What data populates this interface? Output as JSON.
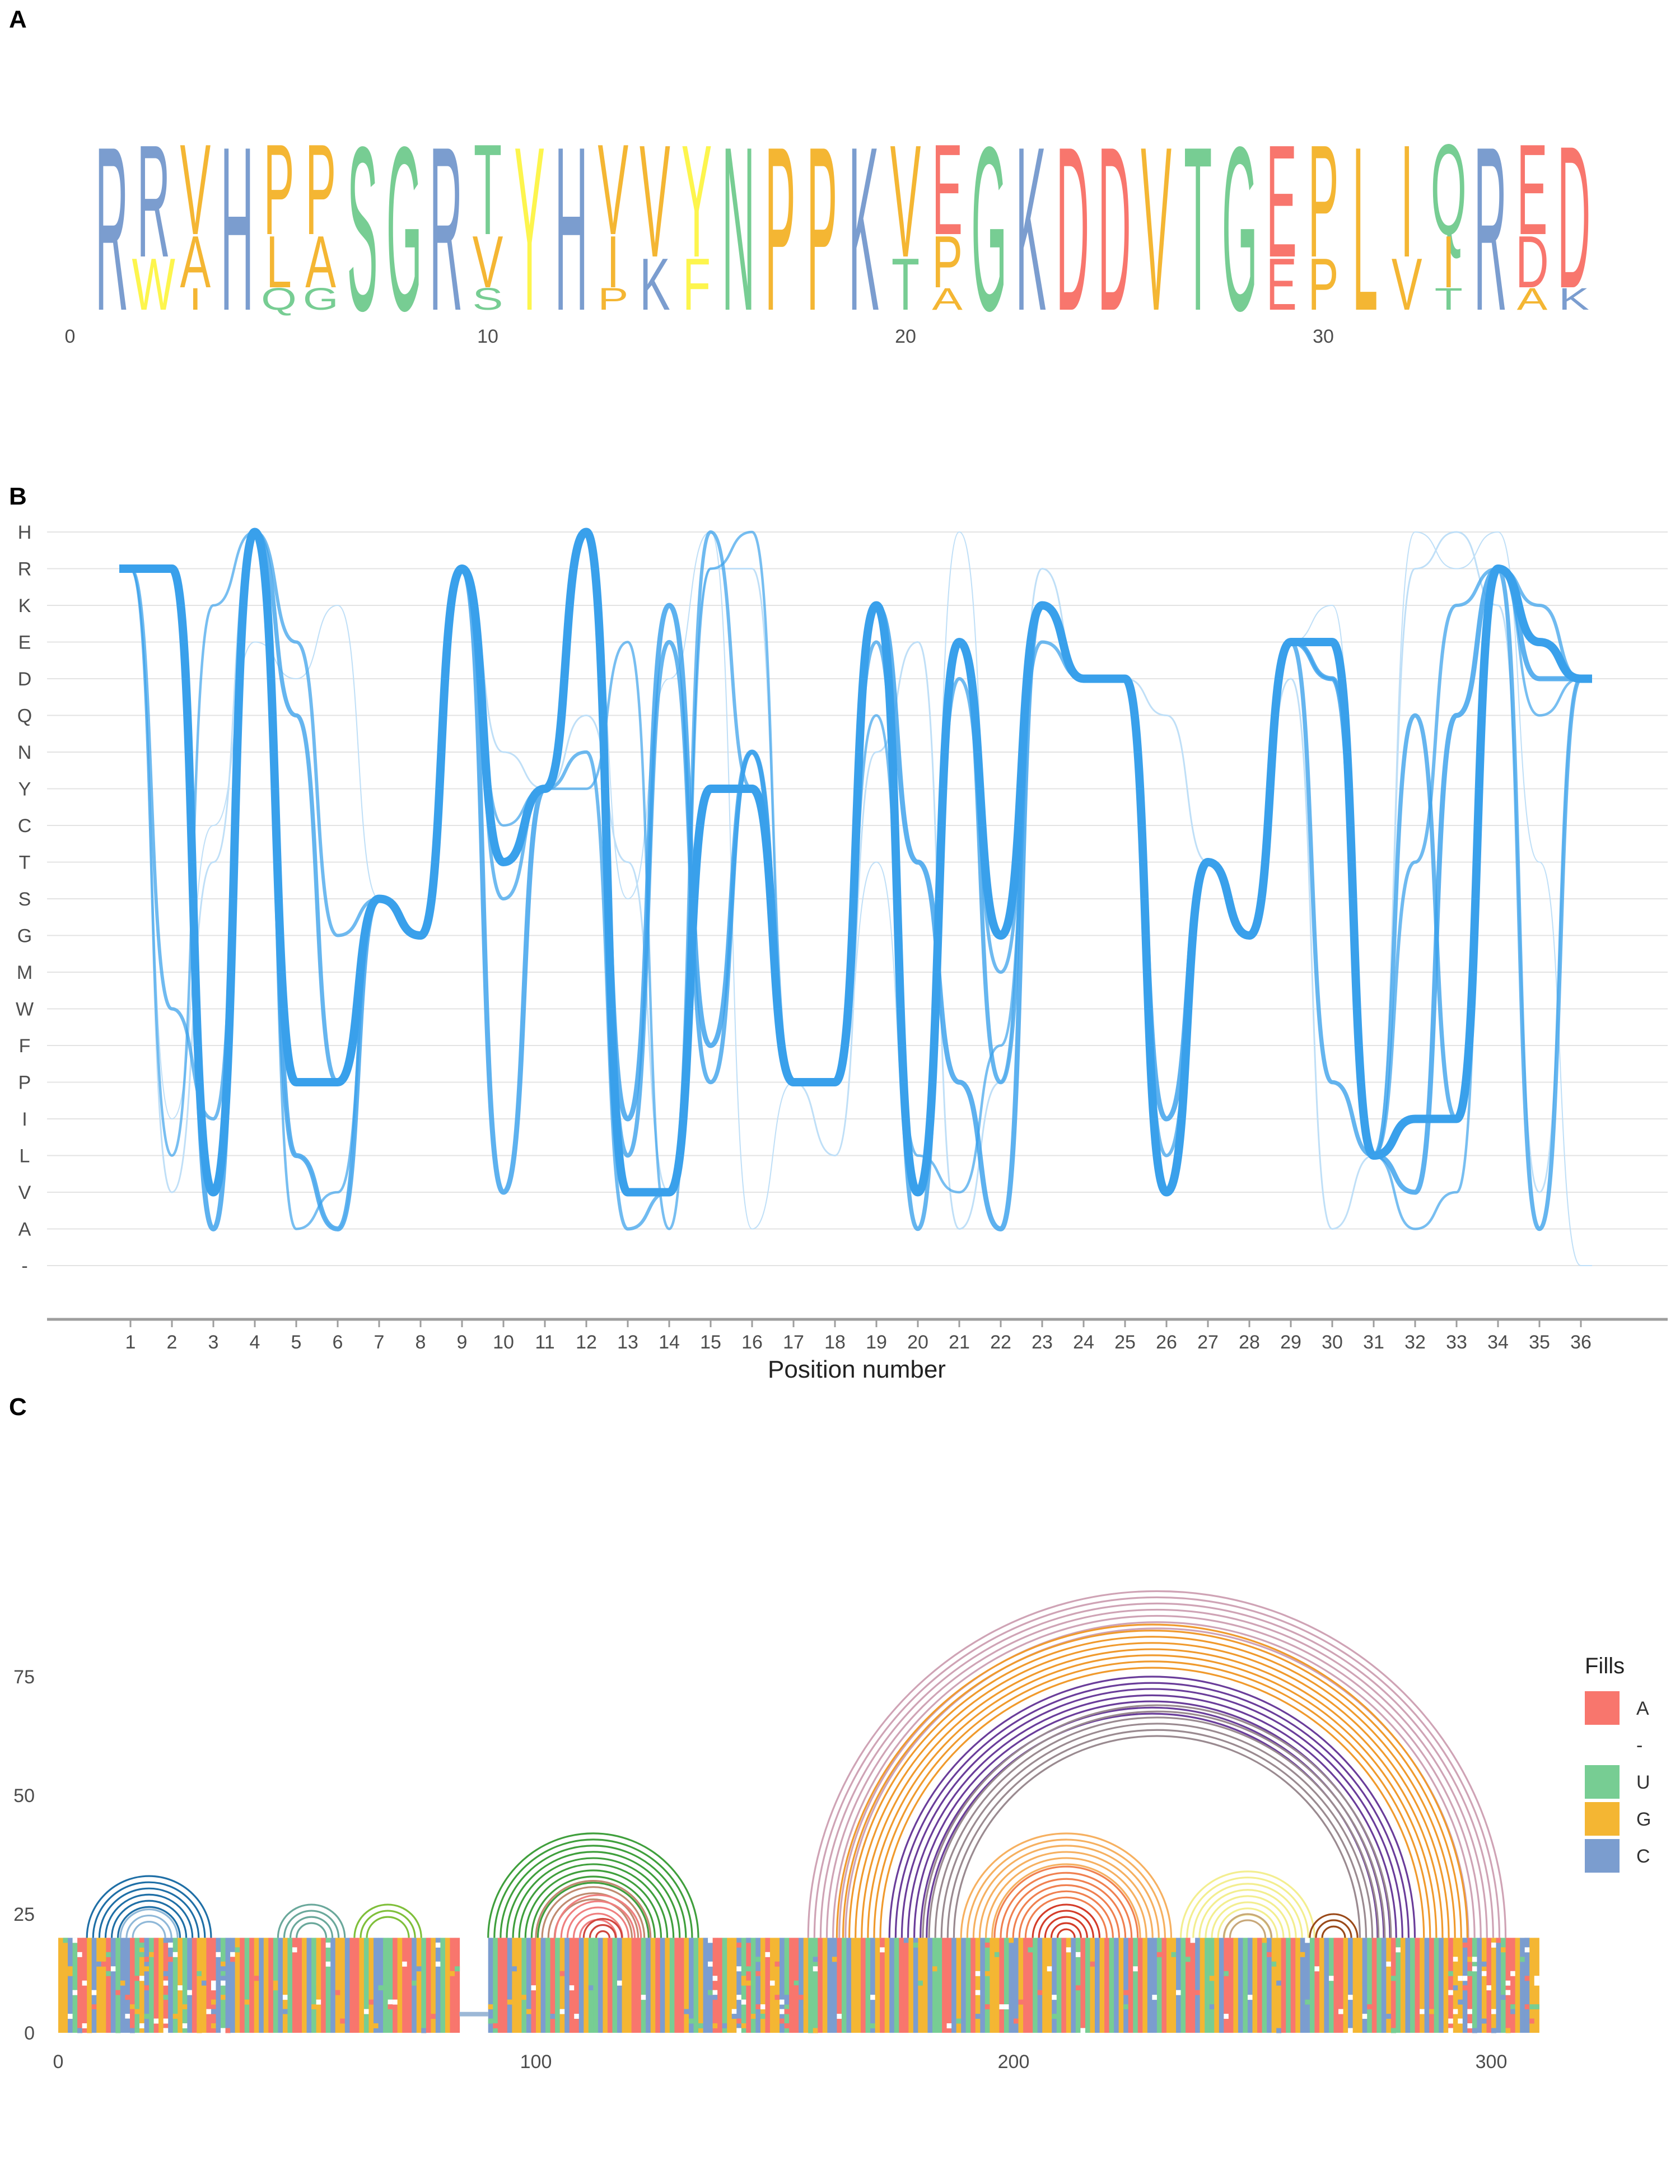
{
  "panels": {
    "a": "A",
    "b": "B",
    "c": "C"
  },
  "colors": {
    "acidic": "#f8766d",
    "basic": "#7b9dcf",
    "polar": "#77cd93",
    "hydrophobic": "#f4b633",
    "aromatic": "#fdf54d",
    "other": "#b9b9b9",
    "path": "#39a0eb",
    "path_light": "#bfdff7",
    "grid": "#e3e3e3",
    "A": "#f8766d",
    "U": "#77cd93",
    "G": "#f4b633",
    "C": "#7b9dcf"
  },
  "chart_data": [
    {
      "type": "sequence-logo",
      "x_ticks": [
        "0",
        "10",
        "20",
        "30"
      ],
      "x_tick_values": [
        0,
        10,
        20,
        30
      ],
      "xlim": [
        0,
        36.6
      ],
      "consensus": "RRVHPPSGRTYHVVYNPPKVEGKDDVTGEPLIQRED",
      "secondary": {
        "2": "W",
        "3": "A",
        "5": "L",
        "6": "A",
        "10": "V",
        "13": "I",
        "14": "K",
        "15": "F",
        "20": "T",
        "21": "P",
        "29": "E",
        "30": "P",
        "32": "V",
        "33": "I",
        "35": "D"
      },
      "tertiary": {
        "3": "I",
        "5": "Q",
        "6": "G",
        "10": "S",
        "13": "P",
        "21": "A",
        "33": "T",
        "35": "A",
        "36": "K"
      },
      "residue_classes": {
        "acidic": [
          "D",
          "E"
        ],
        "basic": [
          "K",
          "R",
          "H"
        ],
        "polar": [
          "S",
          "T",
          "N",
          "Q",
          "G"
        ],
        "hydrophobic": [
          "A",
          "V",
          "L",
          "I",
          "P",
          "M"
        ],
        "aromatic": [
          "Y",
          "F",
          "W"
        ]
      }
    },
    {
      "type": "line",
      "xlabel": "Position number",
      "x_categories": [
        "1",
        "2",
        "3",
        "4",
        "5",
        "6",
        "7",
        "8",
        "9",
        "10",
        "11",
        "12",
        "13",
        "14",
        "15",
        "16",
        "17",
        "18",
        "19",
        "20",
        "21",
        "22",
        "23",
        "24",
        "25",
        "26",
        "27",
        "28",
        "29",
        "30",
        "31",
        "32",
        "33",
        "34",
        "35",
        "36"
      ],
      "y_categories": [
        "H",
        "R",
        "K",
        "E",
        "D",
        "Q",
        "N",
        "Y",
        "C",
        "T",
        "S",
        "G",
        "M",
        "W",
        "F",
        "P",
        "I",
        "L",
        "V",
        "A",
        "-"
      ],
      "series": [
        {
          "weight": 10,
          "values": [
            "R",
            "R",
            "V",
            "H",
            "P",
            "P",
            "S",
            "G",
            "R",
            "T",
            "Y",
            "H",
            "V",
            "V",
            "Y",
            "Y",
            "P",
            "P",
            "K",
            "V",
            "E",
            "G",
            "K",
            "D",
            "D",
            "V",
            "T",
            "G",
            "E",
            "E",
            "L",
            "I",
            "I",
            "R",
            "E",
            "D"
          ]
        },
        {
          "weight": 6,
          "values": [
            "R",
            "R",
            "A",
            "H",
            "L",
            "A",
            "S",
            "G",
            "R",
            "V",
            "Y",
            "H",
            "I",
            "K",
            "F",
            "N",
            "P",
            "P",
            "K",
            "T",
            "P",
            "A",
            "K",
            "D",
            "D",
            "I",
            "T",
            "G",
            "E",
            "D",
            "L",
            "V",
            "Q",
            "R",
            "D",
            "D"
          ]
        },
        {
          "weight": 5,
          "values": [
            "R",
            "R",
            "V",
            "H",
            "Q",
            "P",
            "S",
            "G",
            "R",
            "T",
            "Y",
            "H",
            "L",
            "E",
            "P",
            "N",
            "P",
            "P",
            "K",
            "A",
            "E",
            "P",
            "K",
            "D",
            "D",
            "V",
            "T",
            "G",
            "E",
            "P",
            "L",
            "Q",
            "I",
            "R",
            "A",
            "D"
          ]
        },
        {
          "weight": 4,
          "values": [
            "R",
            "W",
            "I",
            "H",
            "E",
            "G",
            "S",
            "G",
            "R",
            "S",
            "Y",
            "N",
            "A",
            "V",
            "H",
            "Y",
            "P",
            "P",
            "E",
            "V",
            "D",
            "M",
            "E",
            "D",
            "D",
            "L",
            "T",
            "G",
            "E",
            "E",
            "L",
            "T",
            "K",
            "R",
            "K",
            "D"
          ]
        },
        {
          "weight": 3,
          "values": [
            "R",
            "L",
            "K",
            "H",
            "A",
            "V",
            "S",
            "G",
            "R",
            "C",
            "Y",
            "Y",
            "E",
            "A",
            "R",
            "H",
            "P",
            "P",
            "Q",
            "L",
            "V",
            "F",
            "K",
            "D",
            "D",
            "V",
            "T",
            "G",
            "E",
            "D",
            "L",
            "A",
            "V",
            "R",
            "Q",
            "D"
          ]
        },
        {
          "weight": 2,
          "values": [
            "R",
            "V",
            "T",
            "H",
            "L",
            "A",
            "S",
            "G",
            "R",
            "N",
            "Y",
            "Q",
            "T",
            "V",
            "R",
            "R",
            "P",
            "L",
            "N",
            "E",
            "A",
            "P",
            "R",
            "D",
            "D",
            "Q",
            "T",
            "G",
            "D",
            "A",
            "L",
            "R",
            "H",
            "K",
            "V",
            "D"
          ]
        },
        {
          "weight": 1,
          "values": [
            "R",
            "I",
            "C",
            "E",
            "D",
            "K",
            "S",
            "G",
            "R",
            "T",
            "Y",
            "H",
            "S",
            "D",
            "H",
            "A",
            "P",
            "P",
            "T",
            "V",
            "H",
            "G",
            "K",
            "D",
            "D",
            "V",
            "T",
            "G",
            "E",
            "K",
            "L",
            "H",
            "R",
            "H",
            "T",
            "-"
          ]
        }
      ]
    },
    {
      "type": "heatmap",
      "x_ticks": [
        "0",
        "100",
        "200",
        "300"
      ],
      "x_tick_values": [
        0,
        100,
        200,
        300
      ],
      "y_ticks": [
        "0",
        "25",
        "50",
        "75"
      ],
      "y_tick_values": [
        0,
        25,
        50,
        75
      ],
      "xlim": [
        0,
        310
      ],
      "ylim": [
        0,
        95
      ],
      "rows": 20,
      "gap": [
        84,
        90
      ],
      "seed_sequence": "GGCUAAGCGGACUCCAUGCUAGACUGUCAGGAACUCCGAUAGCGAUCGUAAGCUGAUCGGCAAGUGCCUUAGAACGUAGCUGAAUCCGAGCUAACGGUCAGCUAUGCAACGUUCGAUCGGAAUCGACGUAAGCUGCCAAUGGCUAUCGAGGCUAACGUUAGCCAUCGGAUCGAGCUAAGCGGCUUAACGCUAGCUGGAUCCGAAUCGGCUAGCUAUGCGAUCGCAUAGCCUAGGCUAACGUUGCAAGCUCGAUCGGAUAGCCUAGCUAAGCGGCUAUCGAUGCUAGCAUCGAGGCAUCGAGCUAAGCCG",
      "legend_title": "Fills",
      "legend": [
        {
          "label": "A",
          "color": "#f8766d"
        },
        {
          "label": "-",
          "color": "#ffffff"
        },
        {
          "label": "U",
          "color": "#77cd93"
        },
        {
          "label": "G",
          "color": "#f4b633"
        },
        {
          "label": "C",
          "color": "#7b9dcf"
        }
      ],
      "arcs": [
        {
          "center": 19,
          "radius": 13,
          "count": 6,
          "step": 1.3,
          "color": "#1f6fa6"
        },
        {
          "center": 19,
          "radius": 6,
          "count": 3,
          "step": 1.3,
          "color": "#8fb8d8"
        },
        {
          "center": 53,
          "radius": 7,
          "count": 4,
          "step": 1.3,
          "color": "#6aa89b"
        },
        {
          "center": 69,
          "radius": 7,
          "count": 3,
          "step": 1.3,
          "color": "#7fbf3a"
        },
        {
          "center": 112,
          "radius": 22,
          "count": 9,
          "step": 1.3,
          "color": "#3f9f3c"
        },
        {
          "center": 112,
          "radius": 12,
          "count": 4,
          "step": 1.3,
          "color": "#c08a70"
        },
        {
          "center": 113,
          "radius": 9,
          "count": 5,
          "step": 1.3,
          "color": "#ef7f7f"
        },
        {
          "center": 114,
          "radius": 4,
          "count": 3,
          "step": 1.3,
          "color": "#d0453d"
        },
        {
          "center": 230,
          "radius": 73,
          "count": 7,
          "step": 1.3,
          "color": "#cfa3b5"
        },
        {
          "center": 229,
          "radius": 66,
          "count": 8,
          "step": 1.3,
          "color": "#f09a2d"
        },
        {
          "center": 229,
          "radius": 55,
          "count": 7,
          "step": 1.3,
          "color": "#6a3d9a"
        },
        {
          "center": 230,
          "radius": 49,
          "count": 6,
          "step": 1.3,
          "color": "#9a8a90"
        },
        {
          "center": 211,
          "radius": 22,
          "count": 6,
          "step": 1.3,
          "color": "#f6b060"
        },
        {
          "center": 211,
          "radius": 15,
          "count": 6,
          "step": 1.3,
          "color": "#f08050"
        },
        {
          "center": 211,
          "radius": 7,
          "count": 5,
          "step": 1.3,
          "color": "#d43d2a"
        },
        {
          "center": 249,
          "radius": 14,
          "count": 8,
          "step": 1.3,
          "color": "#f3ee8f"
        },
        {
          "center": 249,
          "radius": 5,
          "count": 2,
          "step": 1.3,
          "color": "#c8a87a"
        },
        {
          "center": 267,
          "radius": 5,
          "count": 3,
          "step": 1.3,
          "color": "#9a4a1a"
        }
      ]
    }
  ]
}
